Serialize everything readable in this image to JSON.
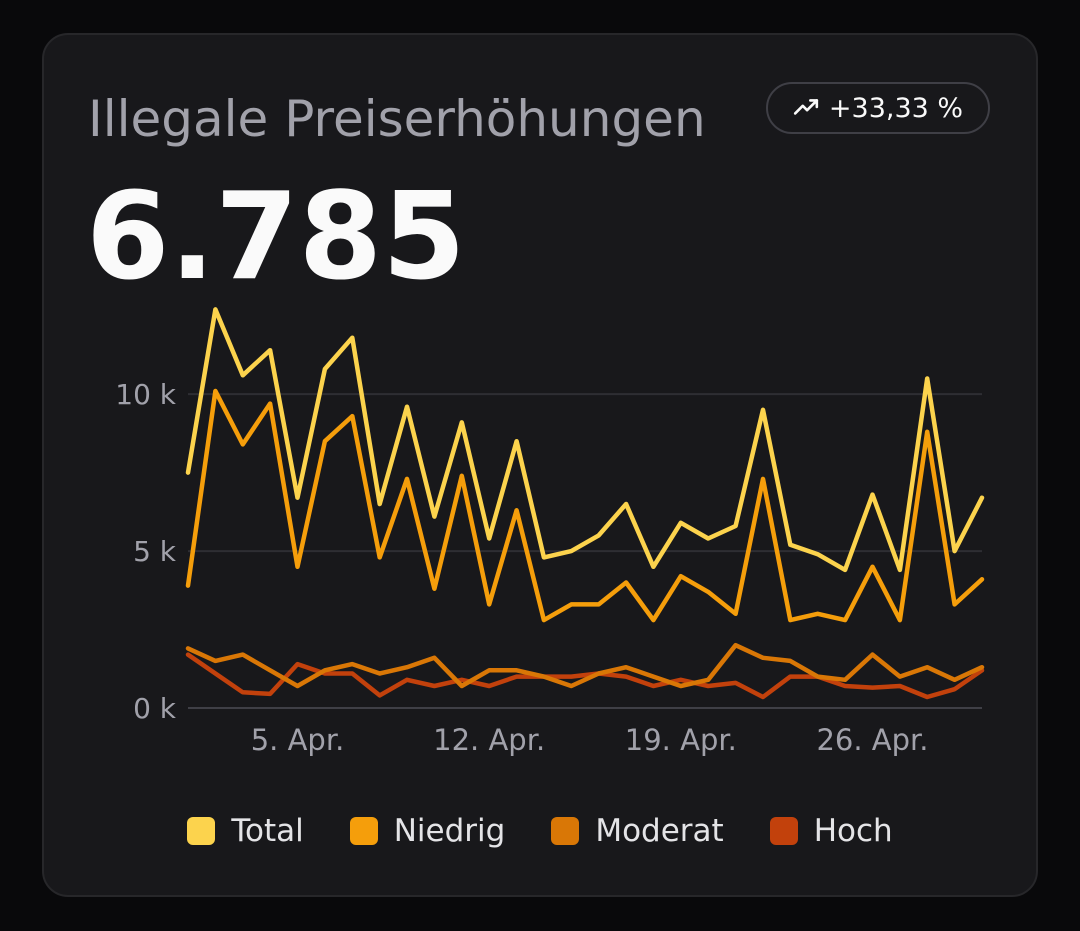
{
  "card": {
    "title": "Illegale Preiserhöhungen",
    "value": "6.785",
    "badge": {
      "icon": "trending-up-icon",
      "text": "+33,33 %"
    }
  },
  "chart_data": {
    "type": "line",
    "x_dates": [
      "1. Apr.",
      "2. Apr.",
      "3. Apr.",
      "4. Apr.",
      "5. Apr.",
      "6. Apr.",
      "7. Apr.",
      "8. Apr.",
      "9. Apr.",
      "10. Apr.",
      "11. Apr.",
      "12. Apr.",
      "13. Apr.",
      "14. Apr.",
      "15. Apr.",
      "16. Apr.",
      "17. Apr.",
      "18. Apr.",
      "19. Apr.",
      "20. Apr.",
      "21. Apr.",
      "22. Apr.",
      "23. Apr.",
      "24. Apr.",
      "25. Apr.",
      "26. Apr.",
      "27. Apr.",
      "28. Apr.",
      "29. Apr.",
      "30. Apr."
    ],
    "x_tick_labels": [
      "5. Apr.",
      "12. Apr.",
      "19. Apr.",
      "26. Apr."
    ],
    "x_tick_positions": [
      "5. Apr.",
      "12. Apr.",
      "19. Apr.",
      "26. Apr."
    ],
    "y_tick_values": [
      0,
      5000,
      10000
    ],
    "y_tick_labels": [
      "0 k",
      "5 k",
      "10 k"
    ],
    "ylim": [
      0,
      13000
    ],
    "grid": true,
    "legend_position": "bottom",
    "series": [
      {
        "name": "Total",
        "color": "#fcd34d",
        "values": [
          7500,
          12700,
          10600,
          11400,
          6700,
          10800,
          11800,
          6500,
          9600,
          6100,
          9100,
          5400,
          8500,
          4800,
          5000,
          5500,
          6500,
          4500,
          5900,
          5400,
          5800,
          9500,
          5200,
          4900,
          4400,
          6800,
          4400,
          10500,
          5000,
          6700
        ]
      },
      {
        "name": "Niedrig",
        "color": "#f59e0b",
        "values": [
          3900,
          10100,
          8400,
          9700,
          4500,
          8500,
          9300,
          4800,
          7300,
          3800,
          7400,
          3300,
          6300,
          2800,
          3300,
          3300,
          4000,
          2800,
          4200,
          3700,
          3000,
          7300,
          2800,
          3000,
          2800,
          4500,
          2800,
          8800,
          3300,
          4100
        ]
      },
      {
        "name": "Moderat",
        "color": "#d97706",
        "values": [
          1900,
          1500,
          1700,
          1200,
          700,
          1200,
          1400,
          1100,
          1300,
          1600,
          700,
          1200,
          1200,
          1000,
          700,
          1100,
          1300,
          1000,
          700,
          900,
          2000,
          1600,
          1500,
          1000,
          900,
          1700,
          1000,
          1300,
          900,
          1300
        ]
      },
      {
        "name": "Hoch",
        "color": "#c2410c",
        "values": [
          1700,
          1100,
          500,
          450,
          1400,
          1100,
          1100,
          400,
          900,
          700,
          900,
          700,
          1000,
          1000,
          1000,
          1100,
          1000,
          700,
          900,
          700,
          800,
          350,
          1000,
          1000,
          700,
          650,
          700,
          350,
          600,
          1200
        ]
      }
    ]
  }
}
